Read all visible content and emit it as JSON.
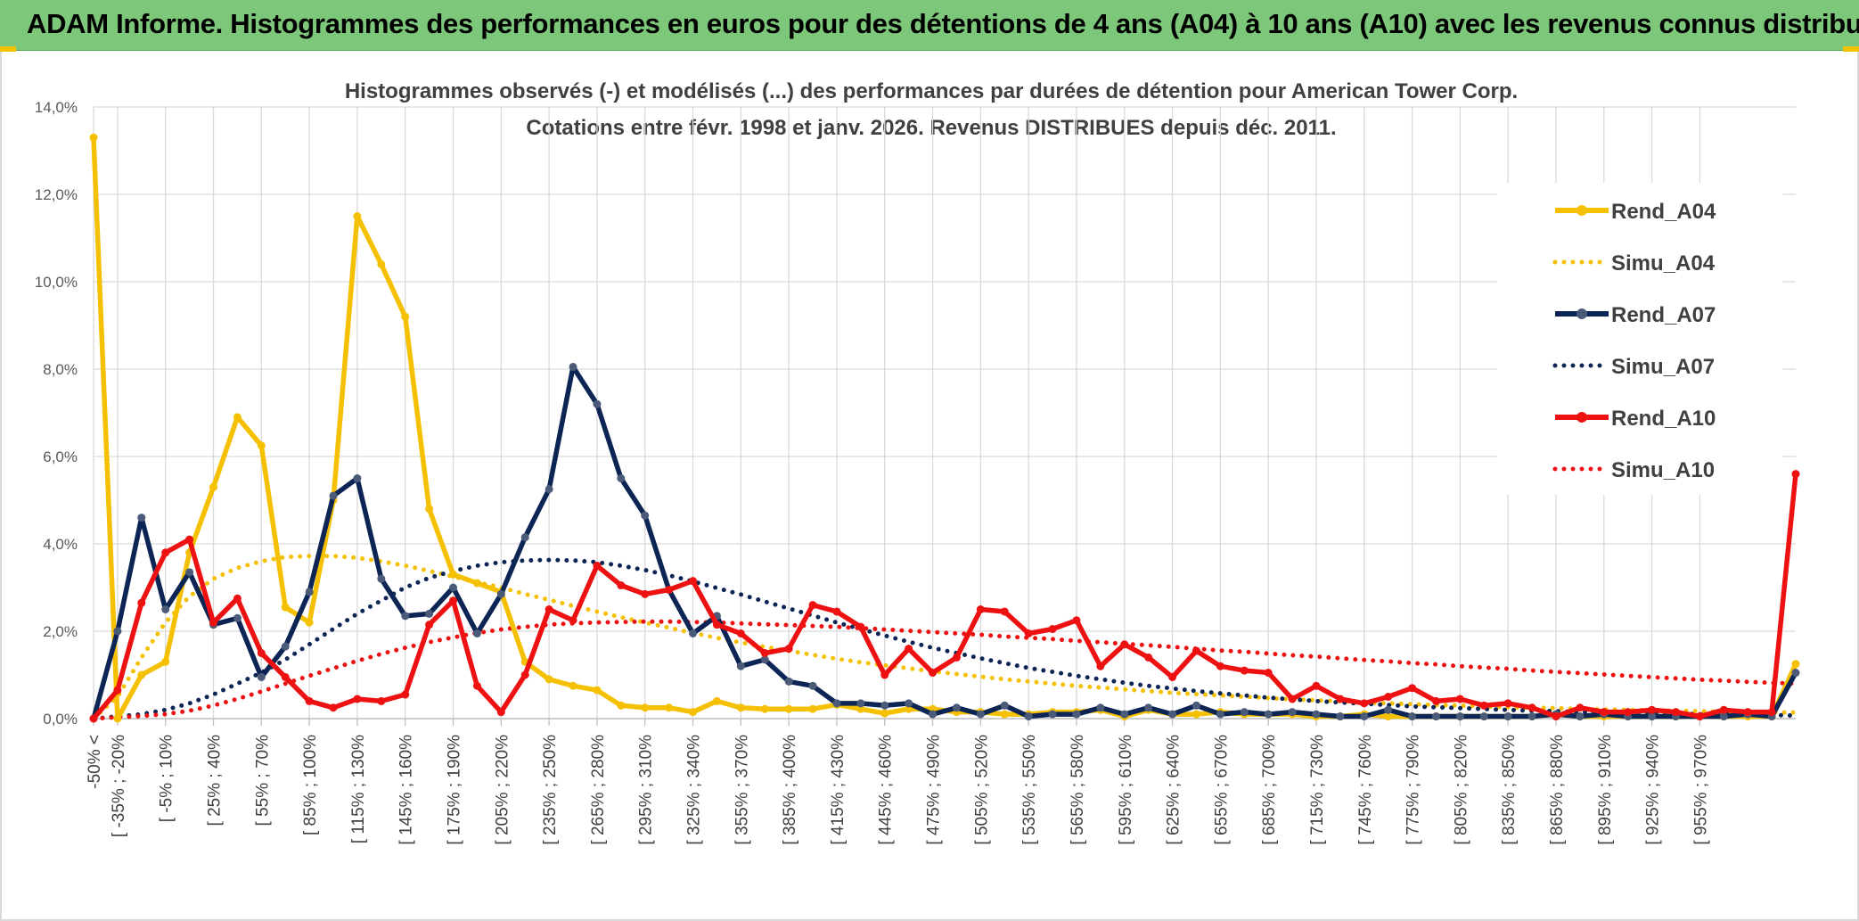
{
  "banner": {
    "title": "ADAM Informe. Histogrammes des performances en euros pour des détentions de 4 ans (A04) à 10 ans (A10) avec les revenus connus distribués"
  },
  "chart_data": {
    "type": "line",
    "title_line1": "Histogrammes observés (-) et modélisés (...) des performances par durées de détention pour American Tower Corp.",
    "title_line2": "Cotations entre févr. 1998 et janv. 2026. Revenus DISTRIBUES depuis déc. 2011.",
    "ylim": [
      0,
      14
    ],
    "yticks": [
      "0,0%",
      "2,0%",
      "4,0%",
      "6,0%",
      "8,0%",
      "10,0%",
      "12,0%",
      "14,0%"
    ],
    "xtick_labels": [
      "-50% <",
      "[ -35% ; -20%",
      "[ -5% ; 10%",
      "[ 25% ; 40%",
      "[ 55% ; 70%",
      "[ 85% ; 100%",
      "[ 115% ; 130%",
      "[ 145% ; 160%",
      "[ 175% ; 190%",
      "[ 205% ; 220%",
      "[ 235% ; 250%",
      "[ 265% ; 280%",
      "[ 295% ; 310%",
      "[ 325% ; 340%",
      "[ 355% ; 370%",
      "[ 385% ; 400%",
      "[ 415% ; 430%",
      "[ 445% ; 460%",
      "[ 475% ; 490%",
      "[ 505% ; 520%",
      "[ 535% ; 550%",
      "[ 565% ; 580%",
      "[ 595% ; 610%",
      "[ 625% ; 640%",
      "[ 655% ; 670%",
      "[ 685% ; 700%",
      "[ 715% ; 730%",
      "[ 745% ; 760%",
      "[ 775% ; 790%",
      "[ 805% ; 820%",
      "[ 835% ; 850%",
      "[ 865% ; 880%",
      "[ 895% ; 910%",
      "[ 925% ; 940%",
      "[ 955% ; 970%"
    ],
    "series": [
      {
        "name": "Rend_A04",
        "style": "solid",
        "color": "#f5c000",
        "values": [
          13.3,
          0.0,
          1.0,
          1.3,
          3.8,
          5.3,
          6.9,
          6.25,
          2.55,
          2.2,
          5.0,
          11.5,
          10.4,
          9.2,
          4.8,
          3.3,
          3.1,
          2.9,
          1.3,
          0.9,
          0.75,
          0.65,
          0.3,
          0.25,
          0.25,
          0.15,
          0.4,
          0.25,
          0.22,
          0.22,
          0.22,
          0.32,
          0.22,
          0.12,
          0.22,
          0.22,
          0.15,
          0.15,
          0.1,
          0.1,
          0.15,
          0.15,
          0.2,
          0.05,
          0.2,
          0.1,
          0.1,
          0.15,
          0.1,
          0.1,
          0.1,
          0.05,
          0.05,
          0.1,
          0.05,
          0.05,
          0.05,
          0.05,
          0.05,
          0.05,
          0.05,
          0.1,
          0.05,
          0.05,
          0.05,
          0.05,
          0.05,
          0.05,
          0.05,
          0.05,
          0.05,
          1.25
        ]
      },
      {
        "name": "Simu_A04",
        "style": "dotted",
        "color": "#f5c000",
        "values": [
          0.0,
          0.5,
          1.4,
          2.2,
          2.8,
          3.2,
          3.45,
          3.6,
          3.7,
          3.72,
          3.72,
          3.68,
          3.6,
          3.5,
          3.38,
          3.25,
          3.12,
          3.0,
          2.85,
          2.72,
          2.58,
          2.45,
          2.32,
          2.2,
          2.08,
          1.96,
          1.85,
          1.74,
          1.64,
          1.55,
          1.46,
          1.37,
          1.29,
          1.22,
          1.15,
          1.08,
          1.02,
          0.96,
          0.9,
          0.85,
          0.8,
          0.75,
          0.71,
          0.67,
          0.63,
          0.59,
          0.56,
          0.53,
          0.5,
          0.47,
          0.44,
          0.42,
          0.4,
          0.37,
          0.35,
          0.33,
          0.31,
          0.3,
          0.28,
          0.26,
          0.25,
          0.24,
          0.22,
          0.21,
          0.2,
          0.19,
          0.18,
          0.17,
          0.16,
          0.15,
          0.14,
          0.14
        ]
      },
      {
        "name": "Rend_A07",
        "style": "solid",
        "color": "#0d2554",
        "values": [
          0.0,
          2.0,
          4.6,
          2.5,
          3.35,
          2.15,
          2.3,
          0.95,
          1.65,
          2.9,
          5.1,
          5.5,
          3.2,
          2.35,
          2.4,
          3.0,
          1.95,
          2.85,
          4.15,
          5.25,
          8.05,
          7.2,
          5.5,
          4.65,
          2.95,
          1.95,
          2.35,
          1.2,
          1.35,
          0.85,
          0.75,
          0.35,
          0.35,
          0.3,
          0.35,
          0.1,
          0.25,
          0.1,
          0.3,
          0.05,
          0.1,
          0.1,
          0.25,
          0.1,
          0.25,
          0.1,
          0.3,
          0.1,
          0.15,
          0.1,
          0.15,
          0.1,
          0.05,
          0.05,
          0.2,
          0.05,
          0.05,
          0.05,
          0.05,
          0.05,
          0.05,
          0.1,
          0.05,
          0.1,
          0.05,
          0.05,
          0.05,
          0.05,
          0.05,
          0.1,
          0.05,
          1.05
        ]
      },
      {
        "name": "Simu_A07",
        "style": "dotted",
        "color": "#0d2554",
        "values": [
          0.0,
          0.05,
          0.1,
          0.2,
          0.35,
          0.55,
          0.8,
          1.05,
          1.35,
          1.7,
          2.05,
          2.4,
          2.7,
          3.0,
          3.22,
          3.38,
          3.5,
          3.58,
          3.62,
          3.63,
          3.62,
          3.58,
          3.5,
          3.4,
          3.28,
          3.14,
          2.99,
          2.84,
          2.68,
          2.52,
          2.36,
          2.2,
          2.05,
          1.9,
          1.76,
          1.62,
          1.5,
          1.38,
          1.27,
          1.16,
          1.07,
          0.98,
          0.9,
          0.82,
          0.75,
          0.69,
          0.63,
          0.58,
          0.53,
          0.48,
          0.44,
          0.4,
          0.37,
          0.34,
          0.31,
          0.28,
          0.26,
          0.24,
          0.22,
          0.2,
          0.18,
          0.17,
          0.15,
          0.14,
          0.13,
          0.12,
          0.11,
          0.1,
          0.09,
          0.08,
          0.08,
          0.07
        ]
      },
      {
        "name": "Rend_A10",
        "style": "solid",
        "color": "#ee1111",
        "values": [
          0.0,
          0.65,
          2.65,
          3.8,
          4.1,
          2.2,
          2.75,
          1.5,
          0.95,
          0.4,
          0.25,
          0.45,
          0.4,
          0.55,
          2.15,
          2.7,
          0.75,
          0.15,
          1.0,
          2.5,
          2.25,
          3.5,
          3.05,
          2.85,
          2.95,
          3.15,
          2.15,
          1.95,
          1.5,
          1.6,
          2.6,
          2.45,
          2.1,
          1.0,
          1.6,
          1.05,
          1.4,
          2.5,
          2.45,
          1.95,
          2.05,
          2.25,
          1.2,
          1.7,
          1.4,
          0.95,
          1.55,
          1.2,
          1.1,
          1.05,
          0.45,
          0.75,
          0.45,
          0.35,
          0.5,
          0.7,
          0.4,
          0.45,
          0.3,
          0.35,
          0.25,
          0.05,
          0.25,
          0.15,
          0.15,
          0.2,
          0.15,
          0.05,
          0.2,
          0.15,
          0.15,
          5.6
        ]
      },
      {
        "name": "Simu_A10",
        "style": "dotted",
        "color": "#ee1111",
        "values": [
          0.0,
          0.03,
          0.06,
          0.1,
          0.18,
          0.3,
          0.45,
          0.62,
          0.8,
          0.98,
          1.15,
          1.32,
          1.48,
          1.62,
          1.75,
          1.86,
          1.96,
          2.04,
          2.1,
          2.15,
          2.18,
          2.2,
          2.21,
          2.22,
          2.22,
          2.21,
          2.2,
          2.18,
          2.16,
          2.14,
          2.12,
          2.1,
          2.07,
          2.04,
          2.01,
          1.98,
          1.95,
          1.92,
          1.88,
          1.85,
          1.82,
          1.78,
          1.75,
          1.71,
          1.68,
          1.64,
          1.6,
          1.56,
          1.53,
          1.49,
          1.45,
          1.42,
          1.38,
          1.34,
          1.31,
          1.27,
          1.24,
          1.2,
          1.17,
          1.14,
          1.1,
          1.07,
          1.04,
          1.01,
          0.98,
          0.95,
          0.92,
          0.89,
          0.87,
          0.84,
          0.82,
          0.8
        ]
      }
    ]
  }
}
